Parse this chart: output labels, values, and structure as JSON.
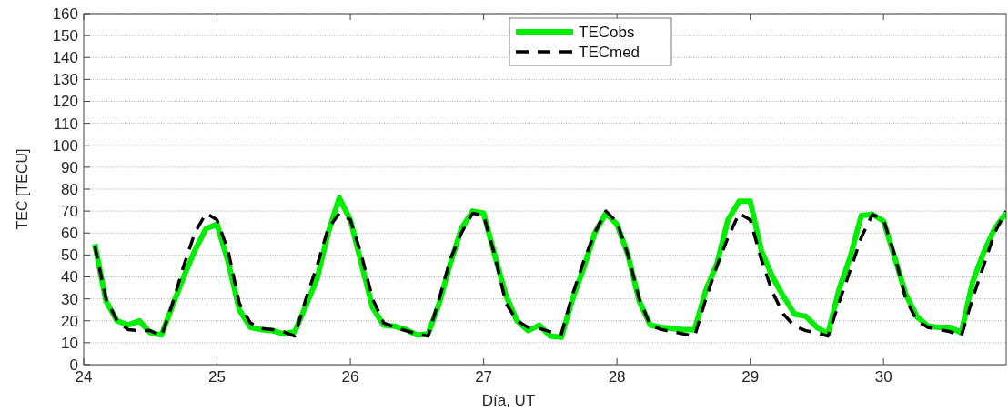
{
  "chart_data": {
    "type": "line",
    "xlabel": "Día, UT",
    "ylabel": "TEC [TECU]",
    "x": [
      24.083,
      24.167,
      24.25,
      24.333,
      24.417,
      24.5,
      24.583,
      24.667,
      24.75,
      24.833,
      24.917,
      25,
      25.083,
      25.167,
      25.25,
      25.333,
      25.417,
      25.5,
      25.583,
      25.667,
      25.75,
      25.833,
      25.917,
      26,
      26.083,
      26.167,
      26.25,
      26.333,
      26.417,
      26.5,
      26.583,
      26.667,
      26.75,
      26.833,
      26.917,
      27,
      27.083,
      27.167,
      27.25,
      27.333,
      27.417,
      27.5,
      27.583,
      27.667,
      27.75,
      27.833,
      27.917,
      28,
      28.083,
      28.167,
      28.25,
      28.333,
      28.417,
      28.5,
      28.583,
      28.667,
      28.75,
      28.833,
      28.917,
      29,
      29.083,
      29.167,
      29.25,
      29.333,
      29.417,
      29.5,
      29.583,
      29.667,
      29.75,
      29.833,
      29.917,
      30,
      30.083,
      30.167,
      30.25,
      30.333,
      30.417,
      30.5,
      30.583,
      30.667,
      30.75,
      30.833,
      30.917
    ],
    "series": [
      {
        "name": "TECobs",
        "color": "#00ee00",
        "line_style": "solid",
        "values": [
          55,
          29,
          20,
          18,
          20,
          14.5,
          13.5,
          27,
          40,
          52,
          62,
          64,
          47,
          25,
          17,
          16,
          15.5,
          14,
          15,
          27,
          39,
          60,
          76,
          66,
          46,
          26,
          18,
          17.5,
          16,
          13.5,
          14,
          28,
          46,
          62,
          70,
          69,
          50,
          31.5,
          20,
          15.5,
          18,
          13,
          12.5,
          30,
          44,
          60,
          69,
          64,
          50,
          29,
          18,
          17,
          16.5,
          16,
          16,
          34,
          46,
          66,
          74.5,
          74.5,
          52,
          40,
          31,
          23,
          22,
          17,
          14,
          34.5,
          49,
          68,
          68.5,
          65.5,
          49,
          32,
          22,
          17.5,
          17,
          17,
          14.5,
          37.5,
          51,
          62,
          69
        ]
      },
      {
        "name": "TECmed",
        "color": "#000000",
        "line_style": "dashed",
        "values": [
          54,
          30,
          20,
          16,
          15.5,
          15.5,
          13,
          28,
          45,
          60,
          69,
          66,
          52,
          28,
          19,
          16.5,
          16,
          15,
          13,
          30,
          45,
          62,
          69,
          66,
          50,
          30,
          19,
          17,
          15.5,
          14,
          13,
          30,
          48,
          60,
          69,
          68,
          50,
          28,
          20,
          17,
          16.5,
          15,
          14,
          32,
          47,
          60,
          70,
          65,
          50,
          30,
          18,
          16,
          15,
          14,
          13,
          30,
          45,
          58,
          69,
          66,
          48,
          33,
          23,
          17.5,
          15.5,
          14.5,
          13,
          28.5,
          43,
          58,
          68.5,
          66,
          50,
          30,
          20,
          17,
          16,
          15,
          13,
          30,
          45,
          60,
          70
        ]
      }
    ],
    "xlim": [
      24,
      30.92
    ],
    "xticks": [
      24,
      25,
      26,
      27,
      28,
      29,
      30
    ],
    "ylim": [
      0,
      160
    ],
    "yticks": [
      0,
      10,
      20,
      30,
      40,
      50,
      60,
      70,
      80,
      90,
      100,
      110,
      120,
      130,
      140,
      150,
      160
    ],
    "grid": "y",
    "legend": "top"
  }
}
